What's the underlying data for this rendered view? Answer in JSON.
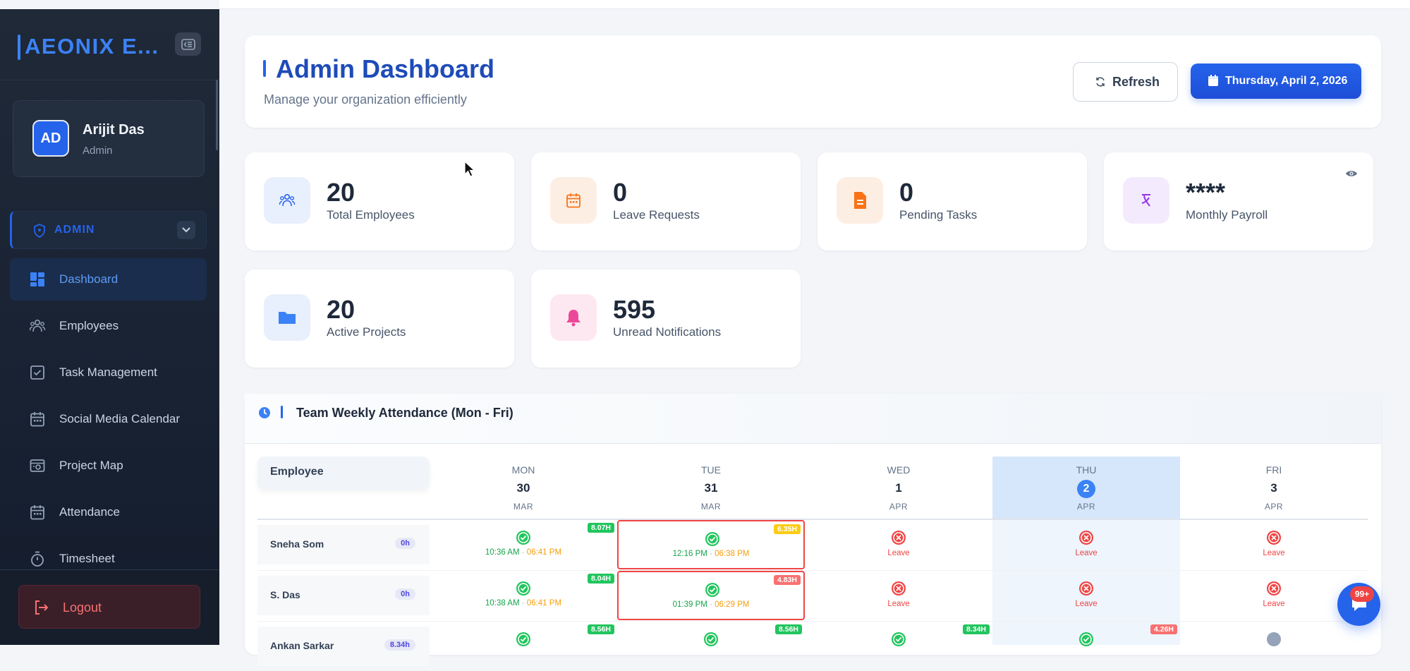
{
  "brand": {
    "name": "AEONIX E..."
  },
  "profile": {
    "initials": "AD",
    "name": "Arijit Das",
    "role": "Admin"
  },
  "role_selector": {
    "label": "ADMIN"
  },
  "nav": [
    {
      "label": "Dashboard",
      "icon": "dashboard-icon",
      "active": true
    },
    {
      "label": "Employees",
      "icon": "users-icon"
    },
    {
      "label": "Task Management",
      "icon": "checkbox-icon"
    },
    {
      "label": "Social Media Calendar",
      "icon": "calendar-icon"
    },
    {
      "label": "Project Map",
      "icon": "map-icon"
    },
    {
      "label": "Attendance",
      "icon": "calendar-icon"
    },
    {
      "label": "Timesheet",
      "icon": "stopwatch-icon"
    }
  ],
  "logout_label": "Logout",
  "header": {
    "title": "Admin Dashboard",
    "subtitle": "Manage your organization efficiently",
    "refresh_label": "Refresh",
    "date_label": "Thursday, April 2, 2026"
  },
  "stats": [
    {
      "value": "20",
      "label": "Total Employees",
      "icon": "users-icon",
      "color": "#2563eb",
      "bg": "#e8effd"
    },
    {
      "value": "0",
      "label": "Leave Requests",
      "icon": "calendar-icon",
      "color": "#f97316",
      "bg": "#fdeee3"
    },
    {
      "value": "0",
      "label": "Pending Tasks",
      "icon": "document-icon",
      "color": "#f97316",
      "bg": "#fdeee3"
    },
    {
      "value": "****",
      "label": "Monthly Payroll",
      "icon": "currency-icon",
      "color": "#9333ea",
      "bg": "#f4eafd"
    },
    {
      "value": "20",
      "label": "Active Projects",
      "icon": "folder-icon",
      "color": "#3b82f6",
      "bg": "#e8effd"
    },
    {
      "value": "595",
      "label": "Unread Notifications",
      "icon": "bell-icon",
      "color": "#ec4899",
      "bg": "#fde8f1"
    }
  ],
  "attendance": {
    "title": "Team Weekly Attendance (Mon - Fri)",
    "employee_header": "Employee",
    "days": [
      {
        "name": "MON",
        "date": "30",
        "month": "MAR"
      },
      {
        "name": "TUE",
        "date": "31",
        "month": "MAR"
      },
      {
        "name": "WED",
        "date": "1",
        "month": "APR"
      },
      {
        "name": "THU",
        "date": "2",
        "month": "APR",
        "today": true
      },
      {
        "name": "FRI",
        "date": "3",
        "month": "APR"
      }
    ],
    "rows": [
      {
        "name": "Sneha Som",
        "hours": "0h",
        "cells": [
          {
            "status": "present",
            "in": "10:36 AM",
            "out": "06:41 PM",
            "badge": "8.07H",
            "badge_color": "green"
          },
          {
            "status": "present",
            "in": "12:16 PM",
            "out": "06:38 PM",
            "badge": "6.35H",
            "badge_color": "yellow",
            "flag": true
          },
          {
            "status": "leave",
            "label": "Leave"
          },
          {
            "status": "leave",
            "label": "Leave"
          },
          {
            "status": "leave",
            "label": "Leave"
          }
        ]
      },
      {
        "name": "S. Das",
        "hours": "0h",
        "cells": [
          {
            "status": "present",
            "in": "10:38 AM",
            "out": "06:41 PM",
            "badge": "8.04H",
            "badge_color": "green"
          },
          {
            "status": "present",
            "in": "01:39 PM",
            "out": "06:29 PM",
            "badge": "4.83H",
            "badge_color": "pink",
            "flag": true
          },
          {
            "status": "leave",
            "label": "Leave"
          },
          {
            "status": "leave",
            "label": "Leave"
          },
          {
            "status": "leave",
            "label": "Leave"
          }
        ]
      },
      {
        "name": "Ankan Sarkar",
        "hours": "8.34h",
        "cells": [
          {
            "status": "present",
            "badge": "8.56H",
            "badge_color": "green"
          },
          {
            "status": "present",
            "badge": "8.56H",
            "badge_color": "green"
          },
          {
            "status": "present",
            "badge": "8.34H",
            "badge_color": "green"
          },
          {
            "status": "present",
            "badge": "4.26H",
            "badge_color": "pink"
          },
          {
            "status": "pending"
          }
        ]
      }
    ]
  },
  "notification_badge": "99+"
}
